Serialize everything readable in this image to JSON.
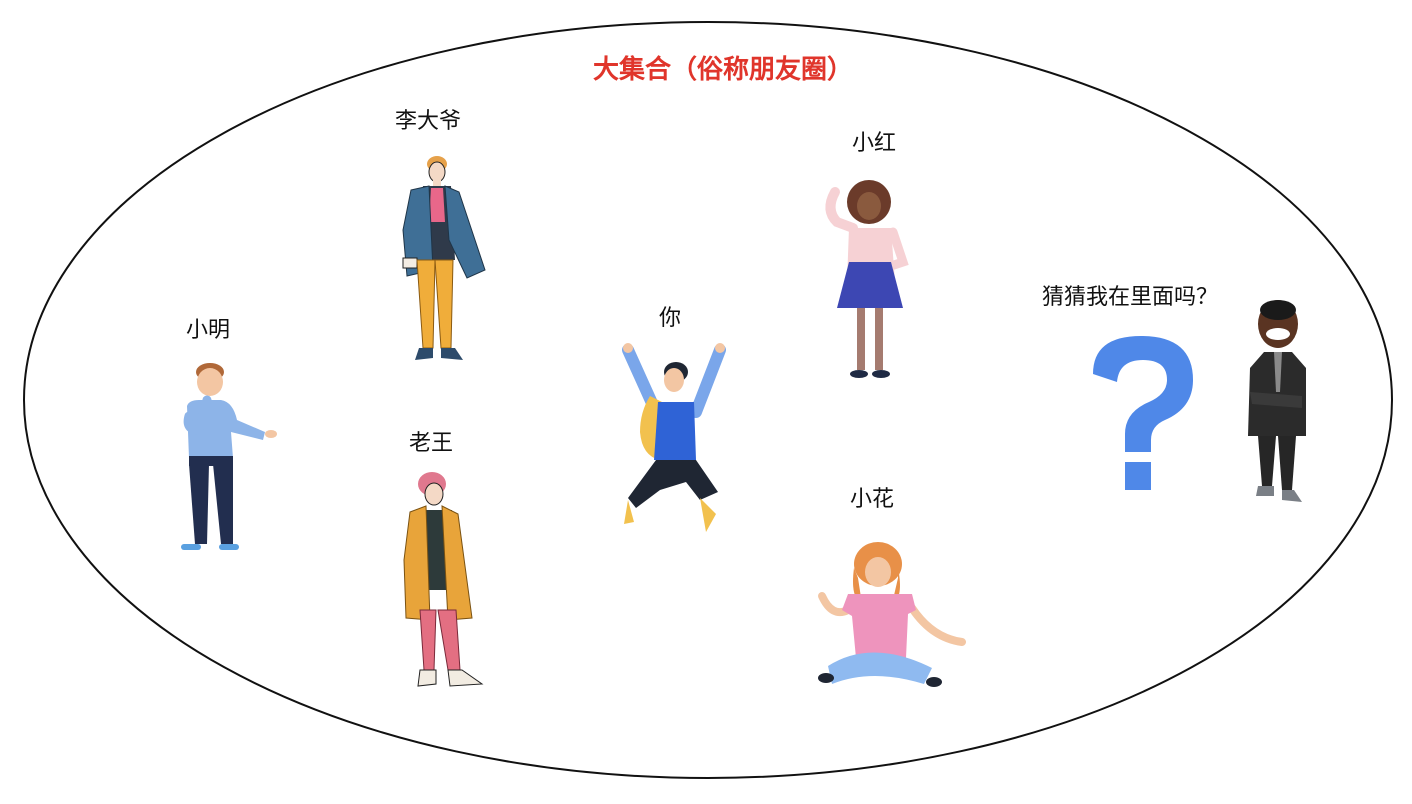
{
  "title": "大集合（俗称朋友圈）",
  "people": [
    {
      "id": "li-da-ye",
      "label": "李大爷"
    },
    {
      "id": "xiao-hong",
      "label": "小红"
    },
    {
      "id": "xiao-ming",
      "label": "小明"
    },
    {
      "id": "ni",
      "label": "你"
    },
    {
      "id": "lao-wang",
      "label": "老王"
    },
    {
      "id": "xiao-hua",
      "label": "小花"
    },
    {
      "id": "mystery",
      "label": "猜猜我在里面吗？"
    }
  ],
  "colors": {
    "title": "#e0352b",
    "ellipse_stroke": "#111111",
    "question_mark": "#4f88e8"
  },
  "icons": {
    "question": "question-mark-icon"
  }
}
